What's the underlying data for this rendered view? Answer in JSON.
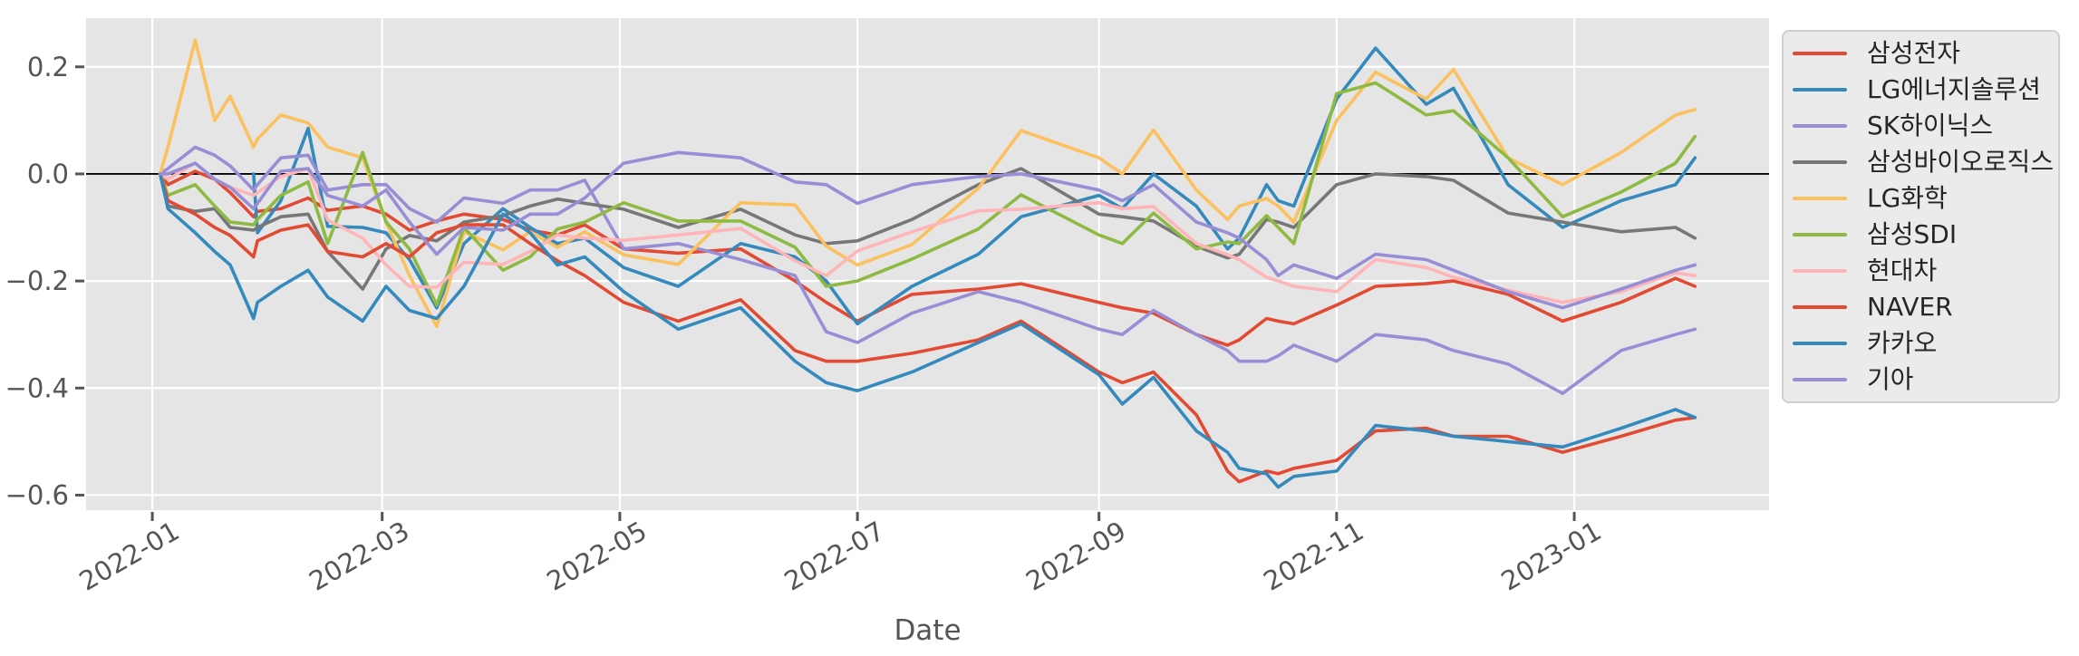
{
  "figure": {
    "background": "#ffffff"
  },
  "chart_data": {
    "type": "line",
    "title": "",
    "xlabel": "Date",
    "ylabel": "",
    "grid": true,
    "legend_position": "outside-right",
    "ylim": [
      -0.628,
      0.291
    ],
    "xlim_dates": [
      "2021-12-15",
      "2023-02-20"
    ],
    "zero_line": 0.0,
    "y_ticks": [
      {
        "value": 0.2,
        "label": "0.2"
      },
      {
        "value": 0.0,
        "label": "0.0"
      },
      {
        "value": -0.2,
        "label": "−0.2"
      },
      {
        "value": -0.4,
        "label": "−0.4"
      },
      {
        "value": -0.6,
        "label": "−0.6"
      }
    ],
    "x_ticks": [
      {
        "date": "2022-01-01",
        "label": "2022-01"
      },
      {
        "date": "2022-03-01",
        "label": "2022-03"
      },
      {
        "date": "2022-05-01",
        "label": "2022-05"
      },
      {
        "date": "2022-07-01",
        "label": "2022-07"
      },
      {
        "date": "2022-09-01",
        "label": "2022-09"
      },
      {
        "date": "2022-11-01",
        "label": "2022-11"
      },
      {
        "date": "2023-01-01",
        "label": "2023-01"
      }
    ],
    "x_dates": [
      "2022-01-03",
      "2022-01-05",
      "2022-01-12",
      "2022-01-17",
      "2022-01-21",
      "2022-01-27",
      "2022-01-28",
      "2022-02-03",
      "2022-02-10",
      "2022-02-15",
      "2022-02-24",
      "2022-03-02",
      "2022-03-08",
      "2022-03-15",
      "2022-03-22",
      "2022-04-01",
      "2022-04-08",
      "2022-04-15",
      "2022-04-22",
      "2022-05-02",
      "2022-05-16",
      "2022-06-01",
      "2022-06-15",
      "2022-06-23",
      "2022-07-01",
      "2022-07-15",
      "2022-08-01",
      "2022-08-12",
      "2022-09-01",
      "2022-09-07",
      "2022-09-15",
      "2022-09-26",
      "2022-10-04",
      "2022-10-07",
      "2022-10-14",
      "2022-10-17",
      "2022-10-21",
      "2022-11-01",
      "2022-11-11",
      "2022-11-24",
      "2022-12-01",
      "2022-12-15",
      "2022-12-29",
      "2023-01-13",
      "2023-01-27",
      "2023-02-01"
    ],
    "series": [
      {
        "name": "삼성전자",
        "color": "#E24A33",
        "values": [
          0,
          -0.02,
          0.005,
          -0.01,
          -0.035,
          -0.08,
          -0.07,
          -0.065,
          -0.045,
          -0.068,
          -0.06,
          -0.075,
          -0.105,
          -0.088,
          -0.075,
          -0.085,
          -0.105,
          -0.114,
          -0.095,
          -0.14,
          -0.148,
          -0.14,
          -0.2,
          -0.24,
          -0.275,
          -0.225,
          -0.215,
          -0.205,
          -0.24,
          -0.25,
          -0.26,
          -0.3,
          -0.32,
          -0.31,
          -0.27,
          -0.275,
          -0.28,
          -0.245,
          -0.21,
          -0.205,
          -0.2,
          -0.225,
          -0.275,
          -0.24,
          -0.195,
          -0.21
        ]
      },
      {
        "name": "LG에너지솔루션",
        "color": "#348ABD",
        "values": [
          null,
          null,
          null,
          null,
          null,
          0,
          -0.11,
          -0.05,
          0.085,
          -0.098,
          -0.1,
          -0.11,
          -0.16,
          -0.25,
          -0.13,
          -0.065,
          -0.1,
          -0.13,
          -0.12,
          -0.175,
          -0.21,
          -0.13,
          -0.155,
          -0.2,
          -0.28,
          -0.21,
          -0.15,
          -0.08,
          -0.04,
          -0.065,
          0.0,
          -0.06,
          -0.14,
          -0.12,
          -0.02,
          -0.05,
          -0.06,
          0.14,
          0.235,
          0.13,
          0.16,
          -0.02,
          -0.1,
          -0.05,
          -0.02,
          0.03
        ]
      },
      {
        "name": "SK하이닉스",
        "color": "#988ED5",
        "values": [
          0,
          0.01,
          0.05,
          0.035,
          0.015,
          -0.03,
          -0.02,
          0.03,
          0.035,
          -0.03,
          -0.02,
          -0.02,
          -0.065,
          -0.09,
          -0.045,
          -0.055,
          -0.03,
          -0.03,
          -0.012,
          -0.14,
          -0.13,
          -0.16,
          -0.19,
          -0.295,
          -0.315,
          -0.26,
          -0.22,
          -0.24,
          -0.29,
          -0.3,
          -0.255,
          -0.3,
          -0.33,
          -0.35,
          -0.35,
          -0.34,
          -0.32,
          -0.35,
          -0.3,
          -0.31,
          -0.33,
          -0.355,
          -0.41,
          -0.33,
          -0.3,
          -0.29
        ]
      },
      {
        "name": "삼성바이오로직스",
        "color": "#777777",
        "values": [
          0,
          -0.06,
          -0.07,
          -0.065,
          -0.1,
          -0.105,
          -0.1,
          -0.08,
          -0.075,
          -0.145,
          -0.215,
          -0.14,
          -0.115,
          -0.125,
          -0.09,
          -0.078,
          -0.06,
          -0.047,
          -0.055,
          -0.066,
          -0.1,
          -0.066,
          -0.114,
          -0.13,
          -0.125,
          -0.085,
          -0.02,
          0.01,
          -0.075,
          -0.08,
          -0.088,
          -0.135,
          -0.157,
          -0.15,
          -0.085,
          -0.09,
          -0.1,
          -0.02,
          0.0,
          -0.005,
          -0.012,
          -0.073,
          -0.09,
          -0.108,
          -0.1,
          -0.12
        ]
      },
      {
        "name": "LG화학",
        "color": "#FBC15E",
        "values": [
          0,
          0.05,
          0.25,
          0.1,
          0.145,
          0.05,
          0.065,
          0.11,
          0.095,
          0.05,
          0.03,
          -0.09,
          -0.19,
          -0.285,
          -0.108,
          -0.142,
          -0.108,
          -0.137,
          -0.108,
          -0.151,
          -0.169,
          -0.054,
          -0.058,
          -0.135,
          -0.17,
          -0.132,
          -0.027,
          0.081,
          0.03,
          0.0,
          0.082,
          -0.03,
          -0.085,
          -0.06,
          -0.046,
          -0.06,
          -0.09,
          0.1,
          0.19,
          0.14,
          0.195,
          0.03,
          -0.02,
          0.04,
          0.11,
          0.12
        ]
      },
      {
        "name": "삼성SDI",
        "color": "#8EBA42",
        "values": [
          0,
          -0.04,
          -0.02,
          -0.06,
          -0.09,
          -0.095,
          -0.085,
          -0.04,
          -0.015,
          -0.13,
          0.04,
          -0.09,
          -0.14,
          -0.245,
          -0.1,
          -0.18,
          -0.155,
          -0.103,
          -0.09,
          -0.054,
          -0.088,
          -0.088,
          -0.137,
          -0.21,
          -0.2,
          -0.159,
          -0.103,
          -0.039,
          -0.114,
          -0.13,
          -0.073,
          -0.14,
          -0.127,
          -0.13,
          -0.078,
          -0.1,
          -0.13,
          0.15,
          0.17,
          0.11,
          0.118,
          0.03,
          -0.08,
          -0.034,
          0.02,
          0.07
        ]
      },
      {
        "name": "현대차",
        "color": "#FFB5B8",
        "values": [
          0,
          -0.01,
          0.02,
          -0.01,
          -0.025,
          -0.04,
          -0.035,
          -0.005,
          0.01,
          -0.086,
          -0.12,
          -0.17,
          -0.21,
          -0.212,
          -0.165,
          -0.169,
          -0.145,
          -0.114,
          -0.12,
          -0.124,
          -0.114,
          -0.102,
          -0.162,
          -0.19,
          -0.144,
          -0.108,
          -0.069,
          -0.066,
          -0.054,
          -0.065,
          -0.061,
          -0.13,
          -0.151,
          -0.16,
          -0.193,
          -0.2,
          -0.21,
          -0.22,
          -0.16,
          -0.175,
          -0.193,
          -0.217,
          -0.24,
          -0.22,
          -0.185,
          -0.19
        ]
      },
      {
        "name": "NAVER",
        "color": "#E24A33",
        "values": [
          0,
          -0.05,
          -0.075,
          -0.1,
          -0.115,
          -0.155,
          -0.125,
          -0.105,
          -0.095,
          -0.145,
          -0.155,
          -0.13,
          -0.155,
          -0.11,
          -0.095,
          -0.095,
          -0.13,
          -0.162,
          -0.19,
          -0.24,
          -0.275,
          -0.235,
          -0.33,
          -0.35,
          -0.35,
          -0.335,
          -0.31,
          -0.275,
          -0.37,
          -0.39,
          -0.37,
          -0.45,
          -0.555,
          -0.575,
          -0.555,
          -0.56,
          -0.55,
          -0.535,
          -0.48,
          -0.475,
          -0.49,
          -0.49,
          -0.52,
          -0.49,
          -0.46,
          -0.455
        ]
      },
      {
        "name": "카카오",
        "color": "#348ABD",
        "values": [
          0,
          -0.065,
          -0.11,
          -0.145,
          -0.17,
          -0.27,
          -0.24,
          -0.21,
          -0.18,
          -0.23,
          -0.275,
          -0.21,
          -0.255,
          -0.27,
          -0.21,
          -0.075,
          -0.11,
          -0.17,
          -0.155,
          -0.22,
          -0.29,
          -0.25,
          -0.35,
          -0.39,
          -0.405,
          -0.37,
          -0.315,
          -0.28,
          -0.375,
          -0.43,
          -0.38,
          -0.48,
          -0.52,
          -0.55,
          -0.56,
          -0.585,
          -0.565,
          -0.555,
          -0.47,
          -0.48,
          -0.49,
          -0.5,
          -0.51,
          -0.475,
          -0.44,
          -0.455
        ]
      },
      {
        "name": "기아",
        "color": "#988ED5",
        "values": [
          0,
          0.0,
          0.02,
          -0.01,
          -0.025,
          -0.065,
          -0.055,
          0.005,
          0.01,
          -0.04,
          -0.06,
          -0.03,
          -0.09,
          -0.15,
          -0.1,
          -0.105,
          -0.075,
          -0.075,
          -0.045,
          0.02,
          0.04,
          0.03,
          -0.015,
          -0.02,
          -0.055,
          -0.02,
          -0.005,
          0.0,
          -0.03,
          -0.05,
          -0.02,
          -0.09,
          -0.11,
          -0.12,
          -0.16,
          -0.19,
          -0.17,
          -0.195,
          -0.15,
          -0.16,
          -0.18,
          -0.22,
          -0.25,
          -0.215,
          -0.18,
          -0.17
        ]
      }
    ],
    "style": {
      "plot_bg": "#E5E5E5",
      "grid_color": "#FFFFFF",
      "zero_line_color": "#000000",
      "tick_color": "#555555",
      "tick_label_color": "#555555",
      "axis_label_color": "#555555",
      "legend_bg": "#EBEBEB",
      "legend_border": "#CFCFCF",
      "legend_text": "#262626",
      "line_width": 3.6
    }
  }
}
